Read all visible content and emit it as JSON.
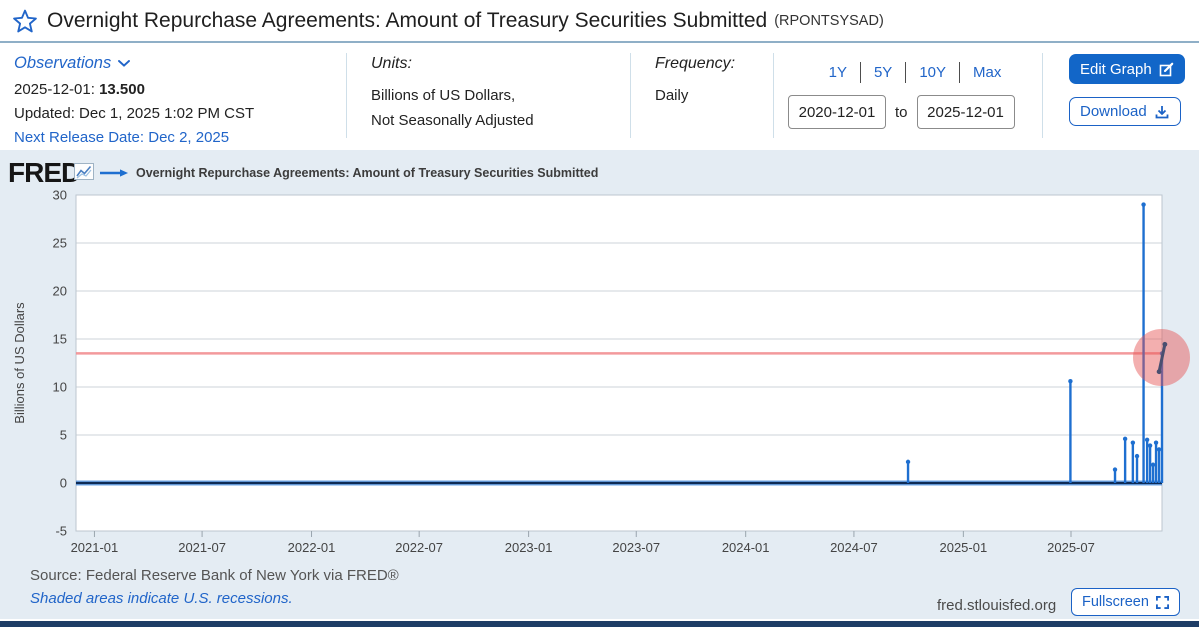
{
  "page": {
    "title": "Overnight Repurchase Agreements: Amount of Treasury Securities Submitted",
    "series_id": "(RPONTSYSAD)"
  },
  "meta": {
    "observations": {
      "label": "Observations",
      "latest_date_label": "2025-12-01:",
      "latest_value": "13.500",
      "updated": "Updated: Dec 1, 2025 1:02 PM CST",
      "next_release": "Next Release Date: Dec 2, 2025"
    },
    "units": {
      "label": "Units:",
      "line1": "Billions of US Dollars,",
      "line2": "Not Seasonally Adjusted"
    },
    "frequency": {
      "label": "Frequency:",
      "value": "Daily"
    },
    "ranges": [
      "1Y",
      "5Y",
      "10Y",
      "Max"
    ],
    "date_from": "2020-12-01",
    "to_label": "to",
    "date_to": "2025-12-01",
    "edit_graph_label": "Edit Graph",
    "download_label": "Download"
  },
  "chart": {
    "brand": "FRED",
    "legend_label": "Overnight Repurchase Agreements: Amount of Treasury Securities Submitted"
  },
  "footer": {
    "source": "Source: Federal Reserve Bank of New York via FRED®",
    "recessions_note": "Shaded areas indicate U.S. recessions.",
    "site": "fred.stlouisfed.org",
    "fullscreen_label": "Fullscreen"
  },
  "colors": {
    "accent_blue": "#1b62c6",
    "link_blue": "#2165c9",
    "chart_background": "#e4ecf3",
    "plot_background": "#ffffff",
    "gridline": "#ccd3da",
    "series_blue": "#1e6fd0",
    "series_core_navy": "#0e2b55",
    "reference_red": "#f28e92",
    "bottom_bar_navy": "#1e3d66",
    "cursor_highlight": "rgba(229,85,85,0.47)"
  },
  "chart_data": {
    "type": "line",
    "title": "Overnight Repurchase Agreements: Amount of Treasury Securities Submitted",
    "ylabel": "Billions of US Dollars",
    "ylim": [
      -5,
      30
    ],
    "yticks": [
      30,
      25,
      20,
      15,
      10,
      5,
      0,
      -5
    ],
    "x_range": [
      "2020-12-01",
      "2025-12-01"
    ],
    "xticks": [
      "2021-01",
      "2021-07",
      "2022-01",
      "2022-07",
      "2023-01",
      "2023-07",
      "2024-01",
      "2024-07",
      "2025-01",
      "2025-07"
    ],
    "grid": "horizontal-only",
    "legend_position": "top",
    "line_color": "#1e6fd0",
    "baseline_value": 0,
    "baseline_note": "Daily series sits at ~0 billions on most days from 2020-12 through mid-2024",
    "reference_line": {
      "value": 13.5,
      "color": "#f28e92"
    },
    "spikes": [
      {
        "date": "2024-09-30",
        "value": 2.2
      },
      {
        "date": "2025-06-30",
        "value": 10.6
      },
      {
        "date": "2025-09-13",
        "value": 1.4
      },
      {
        "date": "2025-09-30",
        "value": 4.6
      },
      {
        "date": "2025-10-13",
        "value": 4.2
      },
      {
        "date": "2025-10-20",
        "value": 2.8
      },
      {
        "date": "2025-10-31",
        "value": 29.0
      },
      {
        "date": "2025-11-06",
        "value": 4.5
      },
      {
        "date": "2025-11-11",
        "value": 3.9
      },
      {
        "date": "2025-11-16",
        "value": 1.9
      },
      {
        "date": "2025-11-21",
        "value": 4.2
      },
      {
        "date": "2025-11-26",
        "value": 3.5
      },
      {
        "date": "2025-12-01",
        "value": 13.5
      }
    ]
  }
}
